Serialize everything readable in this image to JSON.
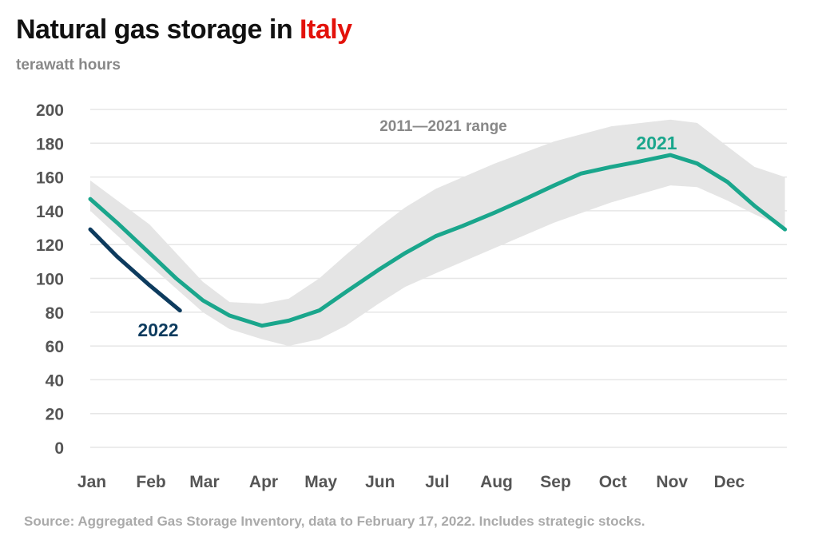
{
  "title_prefix": "Natural gas storage in ",
  "title_highlight": "Italy",
  "subtitle": "terawatt hours",
  "source": "Source: Aggregated Gas Storage Inventory, data to February 17, 2022. Includes strategic stocks.",
  "colors": {
    "title_highlight": "#e3120b",
    "series_2021": "#1aa68c",
    "series_2022": "#0d3b5e",
    "range": "#e5e5e5",
    "grid": "#e6e6e6"
  },
  "chart_data": {
    "type": "line",
    "title": "Natural gas storage in Italy",
    "ylabel": "terawatt hours",
    "ylim": [
      0,
      200
    ],
    "yticks": [
      0,
      20,
      40,
      60,
      80,
      100,
      120,
      140,
      160,
      180,
      200
    ],
    "xticks": [
      "Jan",
      "Feb",
      "Mar",
      "Apr",
      "May",
      "Jun",
      "Jul",
      "Aug",
      "Sep",
      "Oct",
      "Nov",
      "Dec"
    ],
    "grid": true,
    "range": {
      "name": "2011—2021 range",
      "x": [
        "Jan 1",
        "Feb 1",
        "Mar 1",
        "Mar 15",
        "Apr 1",
        "Apr 15",
        "May 1",
        "May 15",
        "Jun 1",
        "Jun 15",
        "Jul 1",
        "Aug 1",
        "Sep 1",
        "Oct 1",
        "Nov 1",
        "Nov 15",
        "Dec 1",
        "Dec 15",
        "Dec 31"
      ],
      "upper": [
        158,
        132,
        98,
        86,
        85,
        88,
        100,
        114,
        130,
        142,
        153,
        168,
        181,
        190,
        194,
        192,
        178,
        166,
        160
      ],
      "lower": [
        140,
        108,
        80,
        70,
        64,
        60,
        64,
        72,
        85,
        95,
        103,
        118,
        133,
        145,
        155,
        154,
        146,
        138,
        130
      ]
    },
    "series": [
      {
        "name": "2021",
        "x": [
          "Jan 1",
          "Jan 15",
          "Feb 1",
          "Feb 15",
          "Mar 1",
          "Mar 15",
          "Apr 1",
          "Apr 15",
          "May 1",
          "May 15",
          "Jun 1",
          "Jun 15",
          "Jul 1",
          "Jul 15",
          "Aug 1",
          "Aug 15",
          "Sep 1",
          "Sep 15",
          "Oct 1",
          "Oct 15",
          "Nov 1",
          "Nov 15",
          "Dec 1",
          "Dec 15",
          "Dec 31"
        ],
        "values": [
          147,
          133,
          115,
          100,
          87,
          78,
          72,
          75,
          81,
          92,
          105,
          115,
          125,
          131,
          139,
          146,
          155,
          162,
          166,
          169,
          173,
          168,
          157,
          143,
          129
        ]
      },
      {
        "name": "2022",
        "x": [
          "Jan 1",
          "Jan 15",
          "Feb 1",
          "Feb 17"
        ],
        "values": [
          129,
          113,
          96,
          81
        ]
      }
    ]
  }
}
